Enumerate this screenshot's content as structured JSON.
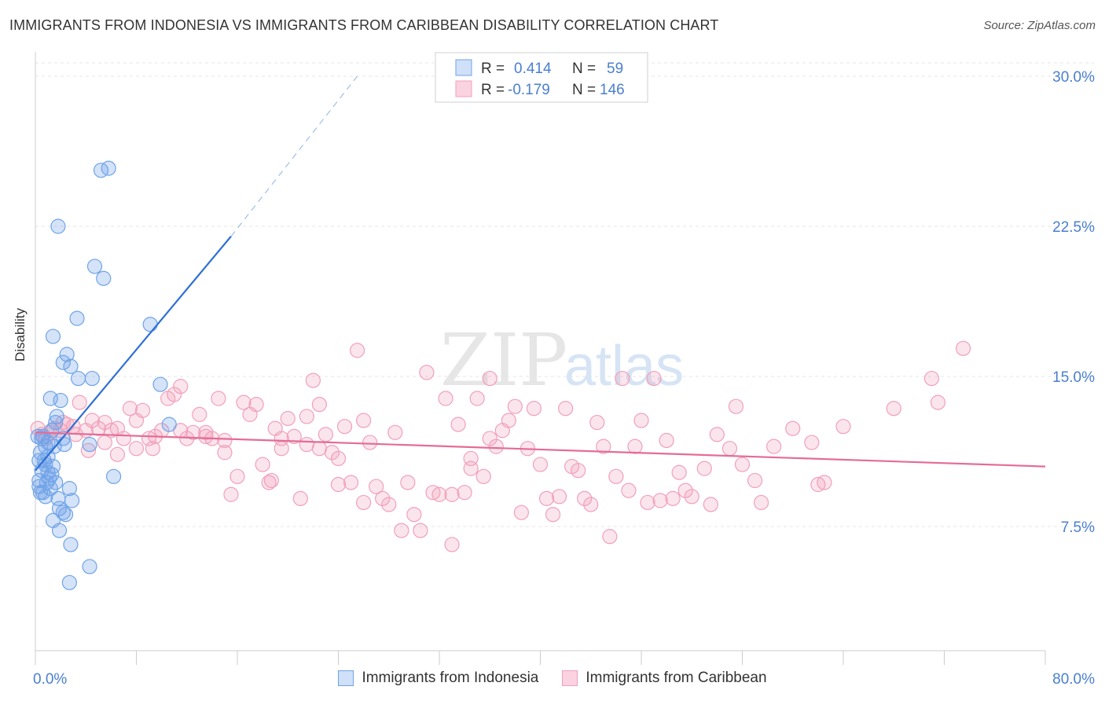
{
  "title": "IMMIGRANTS FROM INDONESIA VS IMMIGRANTS FROM CARIBBEAN DISABILITY CORRELATION CHART",
  "source": "Source: ZipAtlas.com",
  "watermark": {
    "zip": "ZIP",
    "atlas": "atlas"
  },
  "colors": {
    "blue": "#6fa3e8",
    "blue_line": "#2e6fd6",
    "pink": "#f1a0b9",
    "pink_line": "#e46c97",
    "axis_text": "#4a7fd0"
  },
  "chart_data": {
    "type": "scatter",
    "title": "IMMIGRANTS FROM INDONESIA VS IMMIGRANTS FROM CARIBBEAN DISABILITY CORRELATION CHART",
    "xlabel": "",
    "ylabel": "Disability",
    "xlim": [
      0,
      80
    ],
    "ylim": [
      0,
      31.5
    ],
    "x_tick_labels": [
      "0.0%",
      "80.0%"
    ],
    "y_ticks": [
      7.5,
      15.0,
      22.5,
      30.0
    ],
    "y_tick_labels": [
      "7.5%",
      "15.0%",
      "22.5%",
      "30.0%"
    ],
    "legend": {
      "position": "top-center",
      "rows": [
        {
          "r_label": "R =",
          "r_value": "0.414",
          "n_label": "N =",
          "n_value": "59"
        },
        {
          "r_label": "R =",
          "r_value": "-0.179",
          "n_label": "N =",
          "n_value": "146"
        }
      ]
    },
    "series": [
      {
        "name": "Immigrants from Indonesia",
        "color": "#6fa3e8",
        "trend": {
          "x0": 0,
          "y0": 10.3,
          "x1": 15.5,
          "y1": 22.0,
          "dash_to_x": 25.5,
          "dash_to_y": 30.0
        },
        "points": [
          [
            5.2,
            25.3
          ],
          [
            5.8,
            25.4
          ],
          [
            1.8,
            22.5
          ],
          [
            4.7,
            20.5
          ],
          [
            5.4,
            19.9
          ],
          [
            3.3,
            17.9
          ],
          [
            9.1,
            17.6
          ],
          [
            1.4,
            17.0
          ],
          [
            2.5,
            16.1
          ],
          [
            2.2,
            15.7
          ],
          [
            2.8,
            15.5
          ],
          [
            3.4,
            14.9
          ],
          [
            4.5,
            14.9
          ],
          [
            9.9,
            14.6
          ],
          [
            1.2,
            13.9
          ],
          [
            2.0,
            13.8
          ],
          [
            10.6,
            12.6
          ],
          [
            1.7,
            13.0
          ],
          [
            1.6,
            12.7
          ],
          [
            1.3,
            12.3
          ],
          [
            0.6,
            12.0
          ],
          [
            2.2,
            11.9
          ],
          [
            1.0,
            11.7
          ],
          [
            1.5,
            11.5
          ],
          [
            2.3,
            11.6
          ],
          [
            0.8,
            11.5
          ],
          [
            4.3,
            11.6
          ],
          [
            0.4,
            11.2
          ],
          [
            1.0,
            11.0
          ],
          [
            0.3,
            10.8
          ],
          [
            0.8,
            10.6
          ],
          [
            1.4,
            10.5
          ],
          [
            0.5,
            10.3
          ],
          [
            1.0,
            10.2
          ],
          [
            1.3,
            10.1
          ],
          [
            6.2,
            10.0
          ],
          [
            0.3,
            9.8
          ],
          [
            0.9,
            9.7
          ],
          [
            1.6,
            9.7
          ],
          [
            0.3,
            9.5
          ],
          [
            1.2,
            9.4
          ],
          [
            2.7,
            9.4
          ],
          [
            0.6,
            9.2
          ],
          [
            0.8,
            9.0
          ],
          [
            1.8,
            8.9
          ],
          [
            2.9,
            8.8
          ],
          [
            1.9,
            8.4
          ],
          [
            2.2,
            8.2
          ],
          [
            2.4,
            8.1
          ],
          [
            1.4,
            7.8
          ],
          [
            1.9,
            7.3
          ],
          [
            2.8,
            6.6
          ],
          [
            4.3,
            5.5
          ],
          [
            2.7,
            4.7
          ],
          [
            0.2,
            12.0
          ],
          [
            0.5,
            11.9
          ],
          [
            0.7,
            10.8
          ],
          [
            1.1,
            9.9
          ],
          [
            0.4,
            9.2
          ]
        ]
      },
      {
        "name": "Immigrants from Caribbean",
        "color": "#f1a0b9",
        "trend": {
          "x0": 0,
          "y0": 12.2,
          "x1": 80,
          "y1": 10.5
        },
        "points": [
          [
            0.2,
            12.4
          ],
          [
            0.5,
            12.1
          ],
          [
            0.8,
            11.9
          ],
          [
            1.2,
            12.2
          ],
          [
            1.5,
            12.4
          ],
          [
            2.0,
            12.3
          ],
          [
            2.5,
            12.6
          ],
          [
            3.0,
            12.5
          ],
          [
            3.5,
            13.7
          ],
          [
            4.0,
            12.3
          ],
          [
            4.5,
            12.8
          ],
          [
            5.0,
            12.4
          ],
          [
            5.5,
            12.7
          ],
          [
            6.0,
            12.3
          ],
          [
            6.5,
            12.4
          ],
          [
            7.0,
            11.9
          ],
          [
            7.5,
            13.4
          ],
          [
            8.0,
            12.8
          ],
          [
            8.5,
            13.3
          ],
          [
            9.0,
            11.9
          ],
          [
            9.5,
            12.0
          ],
          [
            10.0,
            12.3
          ],
          [
            10.5,
            13.9
          ],
          [
            11.0,
            14.1
          ],
          [
            11.5,
            14.5
          ],
          [
            12.0,
            11.9
          ],
          [
            12.5,
            12.2
          ],
          [
            13.0,
            13.1
          ],
          [
            13.5,
            12.2
          ],
          [
            14.0,
            11.9
          ],
          [
            14.5,
            13.9
          ],
          [
            15.0,
            11.8
          ],
          [
            15.5,
            9.1
          ],
          [
            16.0,
            10.0
          ],
          [
            16.5,
            13.7
          ],
          [
            17.0,
            13.1
          ],
          [
            17.5,
            13.6
          ],
          [
            18.0,
            10.6
          ],
          [
            18.5,
            9.7
          ],
          [
            19.0,
            12.4
          ],
          [
            19.5,
            11.4
          ],
          [
            20.0,
            12.9
          ],
          [
            20.5,
            12.0
          ],
          [
            21.0,
            8.9
          ],
          [
            21.5,
            13.0
          ],
          [
            22.0,
            14.8
          ],
          [
            22.5,
            13.6
          ],
          [
            23.0,
            12.1
          ],
          [
            23.5,
            11.2
          ],
          [
            24.0,
            10.9
          ],
          [
            24.5,
            12.5
          ],
          [
            25.0,
            9.7
          ],
          [
            25.5,
            16.3
          ],
          [
            26.0,
            12.8
          ],
          [
            26.5,
            11.7
          ],
          [
            27.0,
            9.5
          ],
          [
            27.5,
            8.9
          ],
          [
            28.0,
            8.6
          ],
          [
            28.5,
            12.2
          ],
          [
            29.0,
            7.3
          ],
          [
            29.5,
            9.7
          ],
          [
            30.0,
            8.1
          ],
          [
            30.5,
            7.3
          ],
          [
            31.0,
            15.2
          ],
          [
            31.5,
            9.2
          ],
          [
            32.0,
            9.1
          ],
          [
            32.5,
            13.9
          ],
          [
            33.0,
            6.6
          ],
          [
            33.5,
            12.6
          ],
          [
            34.0,
            9.2
          ],
          [
            34.5,
            10.4
          ],
          [
            35.0,
            13.9
          ],
          [
            35.5,
            10.0
          ],
          [
            36.0,
            14.9
          ],
          [
            36.5,
            11.5
          ],
          [
            37.0,
            12.3
          ],
          [
            37.5,
            12.8
          ],
          [
            38.0,
            13.5
          ],
          [
            38.5,
            8.2
          ],
          [
            39.0,
            11.4
          ],
          [
            39.5,
            13.4
          ],
          [
            40.0,
            10.6
          ],
          [
            40.5,
            8.9
          ],
          [
            41.0,
            8.1
          ],
          [
            41.5,
            9.0
          ],
          [
            42.0,
            13.4
          ],
          [
            42.5,
            10.5
          ],
          [
            43.0,
            10.3
          ],
          [
            43.5,
            8.9
          ],
          [
            44.0,
            8.6
          ],
          [
            44.5,
            12.7
          ],
          [
            45.0,
            11.5
          ],
          [
            45.5,
            7.0
          ],
          [
            46.0,
            10.0
          ],
          [
            46.5,
            14.9
          ],
          [
            47.0,
            9.3
          ],
          [
            47.5,
            11.5
          ],
          [
            48.0,
            12.8
          ],
          [
            48.5,
            8.7
          ],
          [
            49.0,
            14.9
          ],
          [
            49.5,
            8.8
          ],
          [
            50.0,
            11.8
          ],
          [
            50.5,
            8.9
          ],
          [
            51.0,
            10.2
          ],
          [
            51.5,
            9.3
          ],
          [
            52.0,
            9.0
          ],
          [
            53.0,
            10.4
          ],
          [
            53.5,
            8.6
          ],
          [
            54.0,
            12.1
          ],
          [
            55.0,
            11.4
          ],
          [
            55.5,
            13.5
          ],
          [
            56.0,
            10.6
          ],
          [
            57.0,
            9.8
          ],
          [
            57.5,
            8.7
          ],
          [
            58.5,
            11.5
          ],
          [
            60.0,
            12.4
          ],
          [
            61.5,
            11.7
          ],
          [
            62.0,
            9.6
          ],
          [
            62.5,
            9.7
          ],
          [
            64.0,
            12.5
          ],
          [
            68.0,
            13.4
          ],
          [
            71.0,
            14.9
          ],
          [
            71.5,
            13.7
          ],
          [
            73.5,
            16.4
          ],
          [
            8.0,
            11.4
          ],
          [
            11.5,
            12.3
          ],
          [
            13.5,
            12.0
          ],
          [
            19.5,
            11.9
          ],
          [
            21.5,
            11.6
          ],
          [
            22.5,
            11.4
          ],
          [
            24.0,
            9.6
          ],
          [
            26.0,
            8.7
          ],
          [
            33.0,
            9.1
          ],
          [
            34.5,
            10.9
          ],
          [
            36.0,
            11.9
          ],
          [
            5.5,
            11.7
          ],
          [
            6.5,
            11.1
          ],
          [
            3.2,
            12.1
          ],
          [
            4.2,
            11.3
          ],
          [
            2.2,
            12.7
          ],
          [
            9.3,
            11.4
          ],
          [
            15.0,
            11.2
          ],
          [
            18.7,
            9.8
          ]
        ]
      }
    ]
  },
  "bottom_legend": [
    {
      "label": "Immigrants from Indonesia"
    },
    {
      "label": "Immigrants from Caribbean"
    }
  ]
}
